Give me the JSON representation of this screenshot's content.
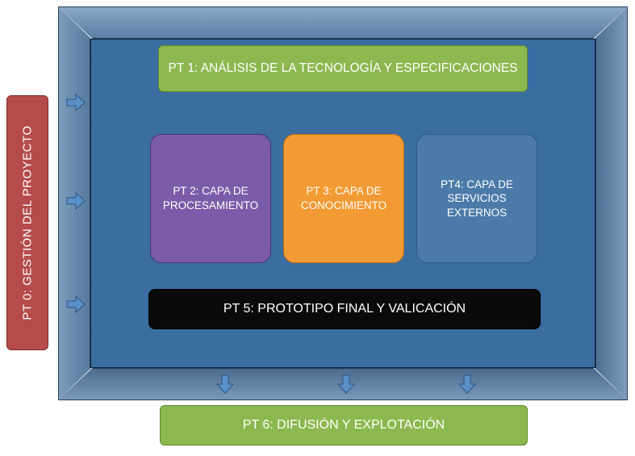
{
  "colors": {
    "pt0_bg": "#b54b4b",
    "pt0_border": "#7c2a2a",
    "pt1_bg": "#8cb84f",
    "pt1_border": "#5d8a2a",
    "pt2_bg": "#7a5ca8",
    "pt2_border": "#4a3470",
    "pt3_bg": "#f29a33",
    "pt3_border": "#c06e12",
    "pt4_bg": "#4c7aa8",
    "pt4_border": "#2c5a88",
    "pt5_bg": "#0a0a0a",
    "pt5_border": "#000000",
    "pt6_bg": "#8cb84f",
    "pt6_border": "#5d8a2a",
    "inner_bg": "#3a6da0",
    "arrow_fill": "#5a90c8",
    "arrow_stroke": "#2a5584"
  },
  "pt0": {
    "label": "PT 0: GESTIÓN DEL PROYECTO"
  },
  "pt1": {
    "label": "PT 1: ANÁLISIS DE LA TECNOLOGÍA Y ESPECIFICACIONES"
  },
  "pt2": {
    "label": "PT 2: CAPA DE PROCESAMIENTO"
  },
  "pt3": {
    "label": "PT 3: CAPA DE CONOCIMIENTO"
  },
  "pt4": {
    "label": "PT4: CAPA DE SERVICIOS EXTERNOS"
  },
  "pt5": {
    "label": "PT 5: PROTOTIPO FINAL Y VALICACIÓN"
  },
  "pt6": {
    "label": "PT 6: DIFUSIÓN Y EXPLOTACIÓN"
  },
  "arrows_right_y": [
    116,
    238,
    366
  ],
  "arrows_down_x": [
    268,
    418,
    568
  ]
}
